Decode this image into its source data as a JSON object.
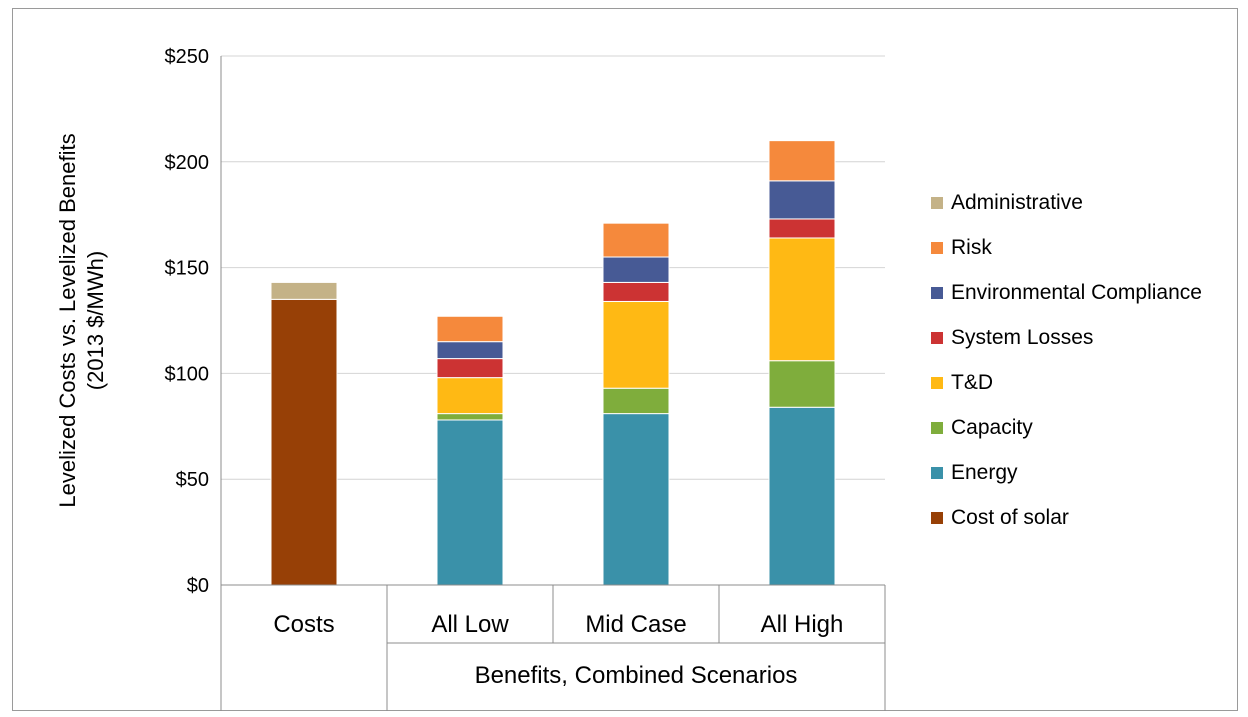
{
  "chart_data": {
    "type": "bar",
    "stacked": true,
    "ylabel": "Levelized Costs vs. Levelized Benefits",
    "ylabel_units": "(2013 $/MWh)",
    "group_label": "Benefits, Combined Scenarios",
    "ylim": [
      0,
      250
    ],
    "yticks": [
      0,
      50,
      100,
      150,
      200,
      250
    ],
    "ytick_labels": [
      "$0",
      "$50",
      "$100",
      "$150",
      "$200",
      "$250"
    ],
    "categories": [
      "Costs",
      "All Low",
      "Mid Case",
      "All High"
    ],
    "legend_position": "right",
    "gridlines": true,
    "series": [
      {
        "name": "Cost of solar",
        "color": "#974006",
        "values": [
          135,
          0,
          0,
          0
        ]
      },
      {
        "name": "Energy",
        "color": "#3a91a9",
        "values": [
          0,
          78,
          81,
          84
        ]
      },
      {
        "name": "Capacity",
        "color": "#7fad3c",
        "values": [
          0,
          3,
          12,
          22
        ]
      },
      {
        "name": "T&D",
        "color": "#ffb914",
        "values": [
          0,
          17,
          41,
          58
        ]
      },
      {
        "name": "System Losses",
        "color": "#cc3333",
        "values": [
          0,
          9,
          9,
          9
        ]
      },
      {
        "name": "Environmental Compliance",
        "color": "#475a95",
        "values": [
          0,
          8,
          12,
          18
        ]
      },
      {
        "name": "Risk",
        "color": "#f5893c",
        "values": [
          0,
          12,
          16,
          19
        ]
      },
      {
        "name": "Administrative",
        "color": "#c4b287",
        "values": [
          8,
          0,
          0,
          0
        ]
      }
    ]
  }
}
